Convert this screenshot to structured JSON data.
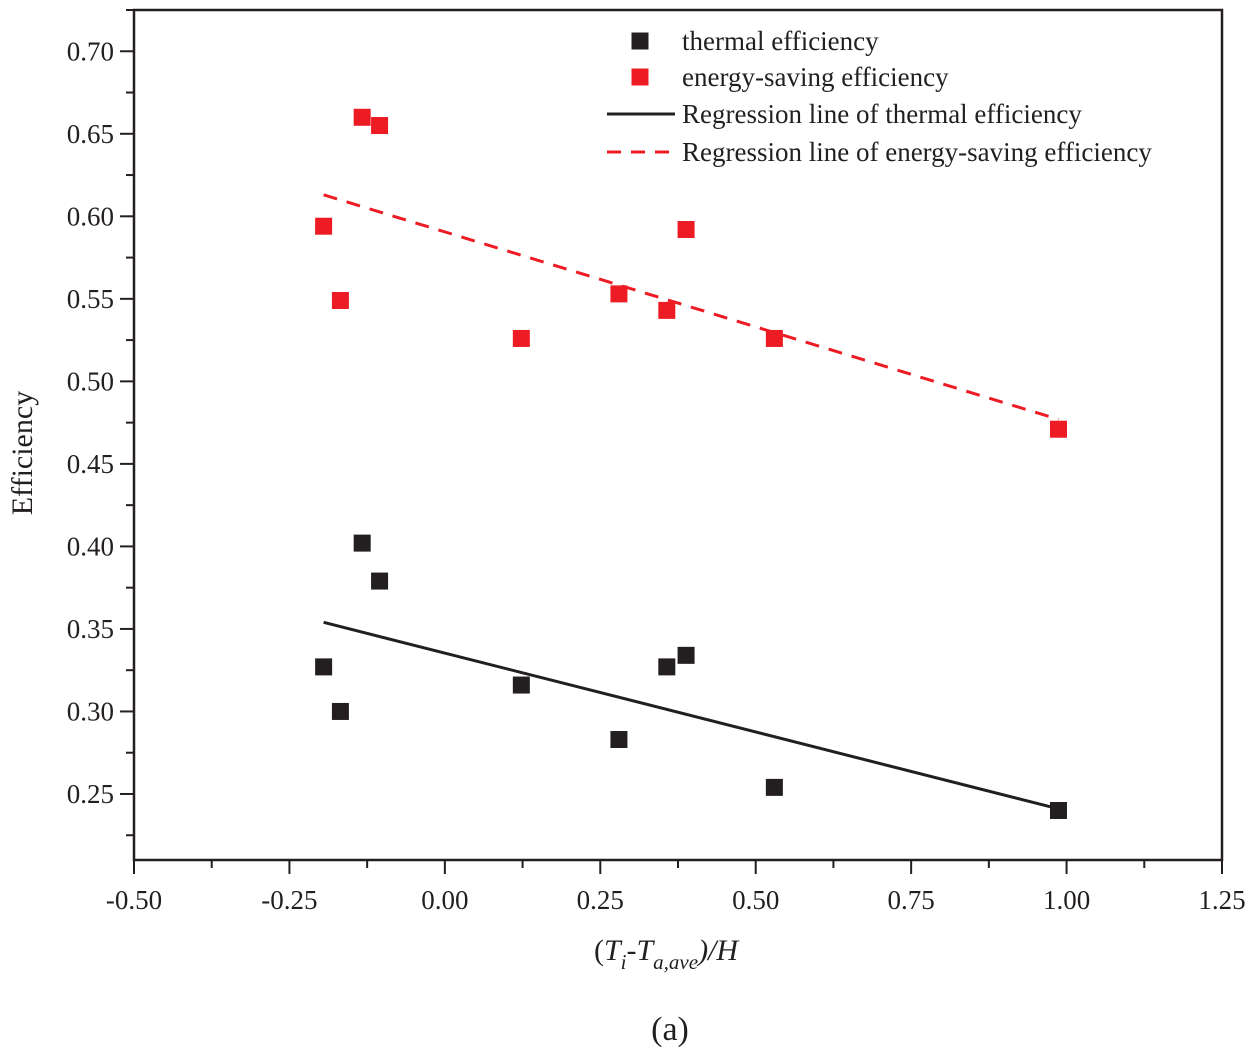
{
  "chart_data": {
    "type": "scatter",
    "title": "",
    "caption": "(a)",
    "xlabel": {
      "open_paren": "(",
      "T1": "T",
      "sub1": "i",
      "dash": "-",
      "T2": "T",
      "sub2": "a,ave",
      "tail": ")/H"
    },
    "ylabel": "Efficiency",
    "xlim": [
      -0.5,
      1.25
    ],
    "ylim": [
      0.21,
      0.725
    ],
    "x_ticks": [
      -0.5,
      -0.25,
      0.0,
      0.25,
      0.5,
      0.75,
      1.0,
      1.25
    ],
    "x_tick_labels": [
      "-0.50",
      "-0.25",
      "0.00",
      "0.25",
      "0.50",
      "0.75",
      "1.00",
      "1.25"
    ],
    "y_ticks": [
      0.25,
      0.3,
      0.35,
      0.4,
      0.45,
      0.5,
      0.55,
      0.6,
      0.65,
      0.7
    ],
    "y_tick_labels": [
      "0.25",
      "0.30",
      "0.35",
      "0.40",
      "0.45",
      "0.50",
      "0.55",
      "0.60",
      "0.65",
      "0.70"
    ],
    "grid": false,
    "legend_position": "top-right",
    "series": [
      {
        "name": "thermal efficiency",
        "kind": "scatter",
        "marker": "square",
        "color": "#231f20",
        "x": [
          -0.195,
          -0.168,
          -0.133,
          -0.105,
          0.123,
          0.28,
          0.357,
          0.388,
          0.53,
          0.987
        ],
        "y": [
          0.327,
          0.3,
          0.402,
          0.379,
          0.316,
          0.283,
          0.327,
          0.334,
          0.254,
          0.24
        ]
      },
      {
        "name": "energy-saving efficiency",
        "kind": "scatter",
        "marker": "square",
        "color": "#ed1c24",
        "x": [
          -0.195,
          -0.168,
          -0.133,
          -0.105,
          0.123,
          0.28,
          0.357,
          0.388,
          0.53,
          0.987
        ],
        "y": [
          0.594,
          0.549,
          0.66,
          0.655,
          0.526,
          0.553,
          0.543,
          0.592,
          0.526,
          0.471
        ]
      },
      {
        "name": "Regression line of thermal efficiency",
        "kind": "line",
        "style": "solid",
        "color": "#231f20",
        "x": [
          -0.195,
          0.987
        ],
        "y": [
          0.354,
          0.241
        ]
      },
      {
        "name": "Regression line of energy-saving efficiency",
        "kind": "line",
        "style": "dashed",
        "color": "#ed1c24",
        "x": [
          -0.195,
          0.987
        ],
        "y": [
          0.613,
          0.477
        ]
      }
    ]
  }
}
